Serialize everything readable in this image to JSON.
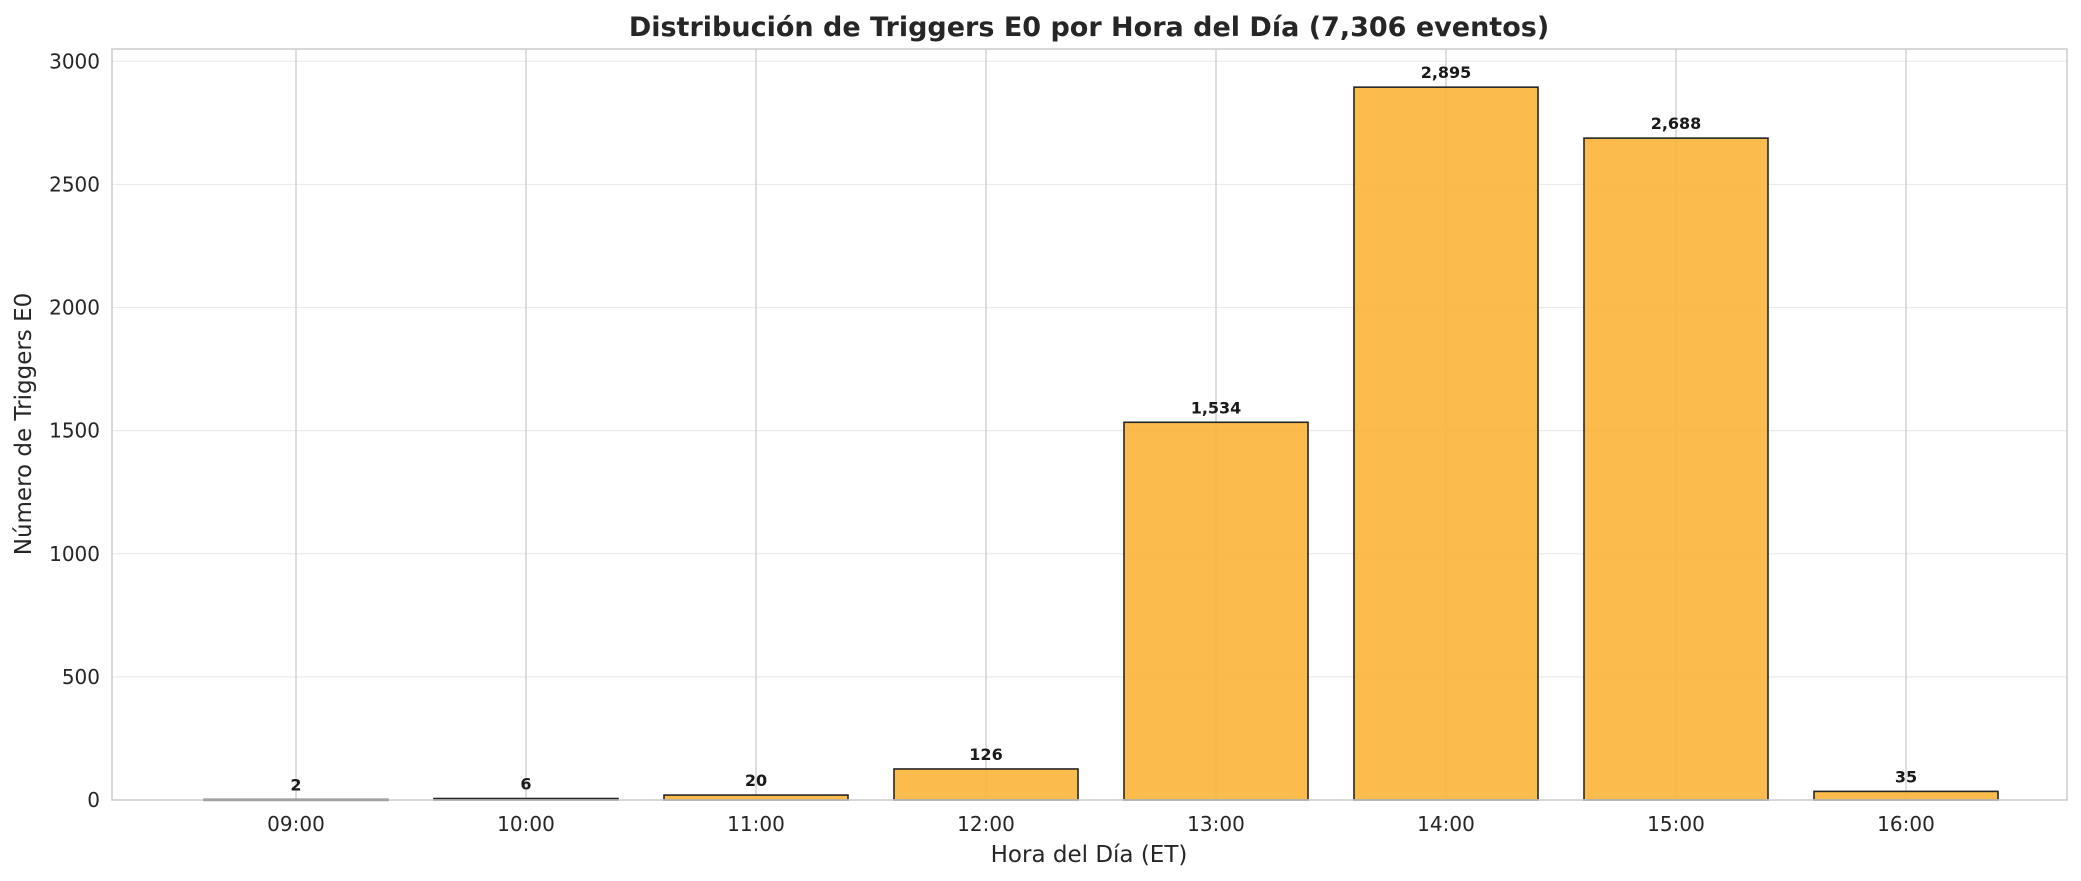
{
  "chart_data": {
    "type": "bar",
    "title": "Distribución de Triggers E0 por Hora del Día (7,306 eventos)",
    "xlabel": "Hora del Día (ET)",
    "ylabel": "Número de Triggers E0",
    "categories": [
      "09:00",
      "10:00",
      "11:00",
      "12:00",
      "13:00",
      "14:00",
      "15:00",
      "16:00"
    ],
    "values": [
      2,
      6,
      20,
      126,
      1534,
      2895,
      2688,
      35
    ],
    "value_labels": [
      "2",
      "6",
      "20",
      "126",
      "1,534",
      "2,895",
      "2,688",
      "35"
    ],
    "ylim": [
      0,
      3050
    ],
    "yticks": [
      0,
      500,
      1000,
      1500,
      2000,
      2500,
      3000
    ],
    "grid": true,
    "bar_color": "#fbb43a",
    "bar_edge_color": "#262626"
  }
}
